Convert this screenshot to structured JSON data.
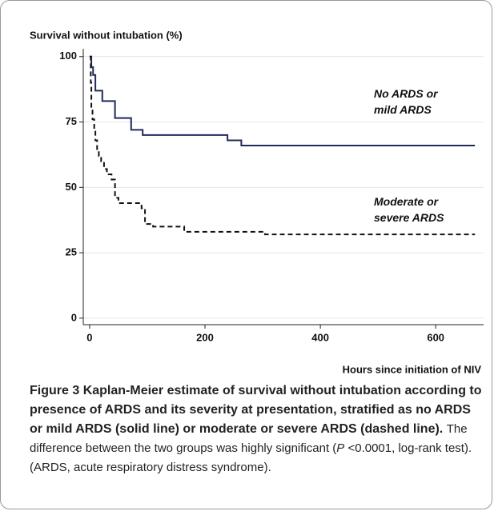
{
  "chart_data": {
    "type": "step",
    "ylabel": "Survival without intubation (%)",
    "xlabel": "Hours since initiation of NIV",
    "xlim": [
      -11,
      683
    ],
    "ylim": [
      -2.5,
      103
    ],
    "xticks": [
      0,
      200,
      400,
      600
    ],
    "yticks": [
      0,
      25,
      50,
      75,
      100
    ],
    "grid": true,
    "series": [
      {
        "name": "No ARDS or mild ARDS",
        "color": "#1f2a5a",
        "dash": false,
        "x": [
          0,
          3,
          6,
          10,
          22,
          44,
          72,
          92,
          239,
          263,
          668
        ],
        "values": [
          100,
          96,
          93,
          87,
          83,
          76.5,
          72,
          70,
          68,
          66,
          66
        ]
      },
      {
        "name": "Moderate or severe ARDS",
        "color": "#111111",
        "dash": true,
        "x": [
          0,
          2,
          3,
          5,
          8,
          10,
          13,
          16,
          20,
          25,
          30,
          38,
          44,
          50,
          90,
          96,
          110,
          164,
          304,
          668
        ],
        "values": [
          100,
          90,
          80,
          76,
          72,
          68,
          64,
          62,
          60,
          57,
          55,
          53,
          46,
          44,
          42,
          36,
          35,
          33,
          32,
          32
        ]
      }
    ]
  },
  "caption": {
    "label": "Figure 3",
    "title": "Kaplan-Meier estimate of survival without intubation according to presence of ARDS and its severity at presentation, stratified as no ARDS or mild ARDS (solid line) or moderate or severe ARDS (dashed line).",
    "text_before": "The difference between the two groups was highly significant (",
    "italic": "P",
    "text_after": " <0.0001, log-rank test). (ARDS, acute respiratory distress syndrome)."
  }
}
